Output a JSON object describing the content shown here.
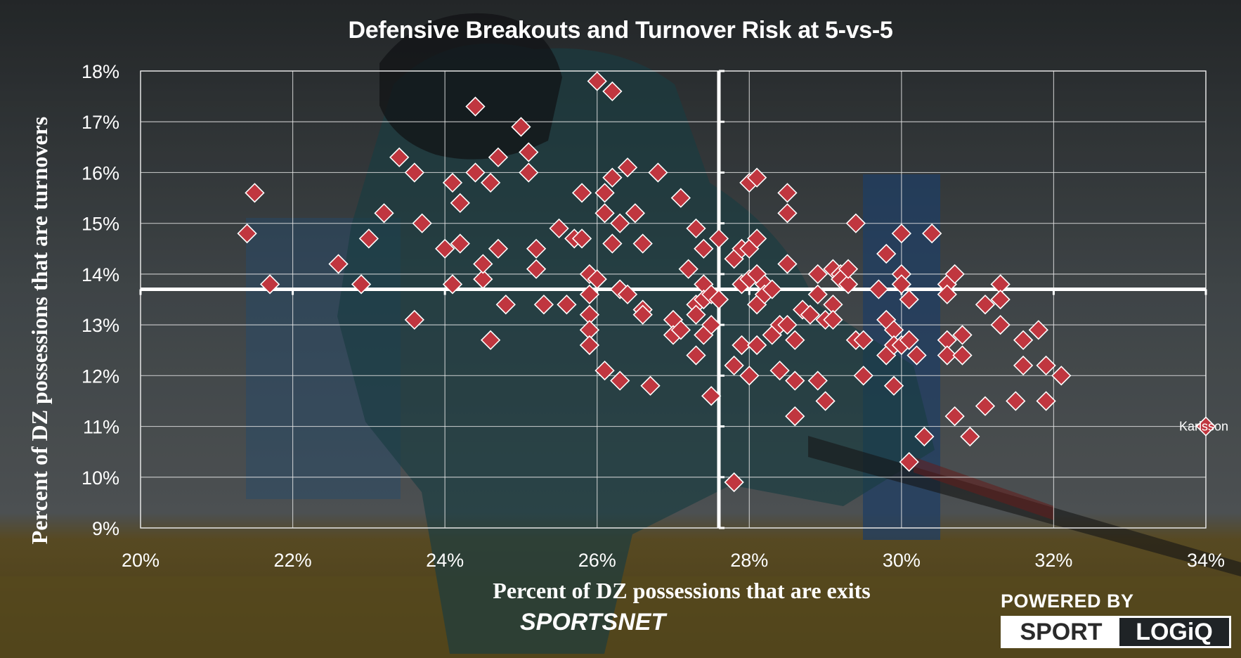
{
  "chart_data": {
    "type": "scatter",
    "title": "Defensive Breakouts and Turnover Risk at 5-vs-5",
    "xlabel": "Percent of DZ possessions that are exits",
    "ylabel": "Percent of DZ possessions that are turnovers",
    "xlim": [
      20,
      34
    ],
    "ylim": [
      9,
      18
    ],
    "x_ticks": [
      "20%",
      "22%",
      "24%",
      "26%",
      "28%",
      "30%",
      "32%",
      "34%"
    ],
    "y_ticks": [
      "9%",
      "10%",
      "11%",
      "12%",
      "13%",
      "14%",
      "15%",
      "16%",
      "17%",
      "18%"
    ],
    "grid": true,
    "reference_lines": {
      "x": 27.6,
      "y": 13.7
    },
    "marker": {
      "shape": "diamond",
      "color": "#c0363f",
      "edge": "#ffffff"
    },
    "points": [
      [
        21.4,
        14.8
      ],
      [
        21.5,
        15.6
      ],
      [
        21.7,
        13.8
      ],
      [
        22.6,
        14.2
      ],
      [
        22.9,
        13.8
      ],
      [
        23.0,
        14.7
      ],
      [
        23.2,
        15.2
      ],
      [
        23.4,
        16.3
      ],
      [
        23.6,
        16.0
      ],
      [
        23.7,
        15.0
      ],
      [
        23.6,
        13.1
      ],
      [
        24.0,
        14.5
      ],
      [
        24.1,
        15.8
      ],
      [
        24.2,
        15.4
      ],
      [
        24.1,
        13.8
      ],
      [
        24.2,
        14.6
      ],
      [
        24.4,
        16.0
      ],
      [
        24.4,
        17.3
      ],
      [
        24.5,
        13.9
      ],
      [
        24.5,
        14.2
      ],
      [
        24.6,
        15.8
      ],
      [
        24.6,
        12.7
      ],
      [
        24.7,
        16.3
      ],
      [
        24.7,
        14.5
      ],
      [
        24.8,
        13.4
      ],
      [
        25.0,
        16.9
      ],
      [
        25.1,
        16.4
      ],
      [
        25.1,
        16.0
      ],
      [
        25.2,
        14.5
      ],
      [
        25.2,
        14.1
      ],
      [
        25.3,
        13.4
      ],
      [
        25.5,
        14.9
      ],
      [
        25.6,
        13.4
      ],
      [
        25.7,
        14.7
      ],
      [
        25.8,
        15.6
      ],
      [
        25.8,
        14.7
      ],
      [
        25.9,
        14.0
      ],
      [
        25.9,
        13.6
      ],
      [
        25.9,
        13.2
      ],
      [
        25.9,
        12.9
      ],
      [
        25.9,
        12.6
      ],
      [
        26.0,
        13.9
      ],
      [
        26.0,
        17.8
      ],
      [
        26.1,
        15.6
      ],
      [
        26.1,
        15.2
      ],
      [
        26.1,
        12.1
      ],
      [
        26.2,
        17.6
      ],
      [
        26.2,
        15.9
      ],
      [
        26.2,
        14.6
      ],
      [
        26.3,
        15.0
      ],
      [
        26.3,
        13.7
      ],
      [
        26.3,
        11.9
      ],
      [
        26.4,
        16.1
      ],
      [
        26.4,
        13.6
      ],
      [
        26.5,
        15.2
      ],
      [
        26.6,
        13.3
      ],
      [
        26.6,
        13.2
      ],
      [
        26.6,
        14.6
      ],
      [
        26.7,
        11.8
      ],
      [
        26.8,
        16.0
      ],
      [
        27.0,
        13.1
      ],
      [
        27.0,
        12.8
      ],
      [
        27.1,
        15.5
      ],
      [
        27.1,
        12.9
      ],
      [
        27.2,
        14.1
      ],
      [
        27.3,
        14.9
      ],
      [
        27.3,
        13.4
      ],
      [
        27.3,
        13.2
      ],
      [
        27.3,
        12.4
      ],
      [
        27.4,
        14.5
      ],
      [
        27.4,
        13.8
      ],
      [
        27.4,
        13.5
      ],
      [
        27.4,
        12.8
      ],
      [
        27.5,
        13.6
      ],
      [
        27.5,
        13.0
      ],
      [
        27.5,
        11.6
      ],
      [
        27.6,
        14.7
      ],
      [
        27.6,
        13.5
      ],
      [
        27.8,
        9.9
      ],
      [
        27.8,
        14.3
      ],
      [
        27.8,
        12.2
      ],
      [
        27.9,
        14.5
      ],
      [
        27.9,
        13.8
      ],
      [
        27.9,
        12.6
      ],
      [
        28.0,
        15.8
      ],
      [
        28.0,
        14.5
      ],
      [
        28.0,
        13.9
      ],
      [
        28.0,
        12.0
      ],
      [
        28.1,
        15.9
      ],
      [
        28.1,
        14.7
      ],
      [
        28.1,
        14.0
      ],
      [
        28.1,
        13.4
      ],
      [
        28.1,
        12.6
      ],
      [
        28.2,
        13.8
      ],
      [
        28.2,
        13.6
      ],
      [
        28.3,
        13.7
      ],
      [
        28.3,
        12.8
      ],
      [
        28.4,
        13.0
      ],
      [
        28.4,
        12.1
      ],
      [
        28.5,
        15.6
      ],
      [
        28.5,
        15.2
      ],
      [
        28.5,
        14.2
      ],
      [
        28.5,
        13.0
      ],
      [
        28.6,
        11.9
      ],
      [
        28.6,
        12.7
      ],
      [
        28.6,
        11.2
      ],
      [
        28.7,
        13.3
      ],
      [
        28.8,
        13.2
      ],
      [
        28.9,
        14.0
      ],
      [
        28.9,
        13.6
      ],
      [
        28.9,
        11.9
      ],
      [
        29.0,
        13.1
      ],
      [
        29.0,
        11.5
      ],
      [
        29.1,
        14.1
      ],
      [
        29.1,
        13.4
      ],
      [
        29.1,
        13.1
      ],
      [
        29.2,
        14.0
      ],
      [
        29.2,
        13.9
      ],
      [
        29.3,
        13.8
      ],
      [
        29.3,
        14.1
      ],
      [
        29.4,
        15.0
      ],
      [
        29.4,
        12.7
      ],
      [
        29.5,
        12.7
      ],
      [
        29.5,
        12.0
      ],
      [
        29.7,
        13.7
      ],
      [
        29.8,
        14.4
      ],
      [
        29.8,
        13.1
      ],
      [
        29.8,
        12.4
      ],
      [
        29.9,
        11.8
      ],
      [
        29.9,
        12.9
      ],
      [
        29.9,
        12.6
      ],
      [
        30.0,
        14.8
      ],
      [
        30.0,
        14.0
      ],
      [
        30.0,
        13.8
      ],
      [
        30.0,
        12.6
      ],
      [
        30.1,
        13.5
      ],
      [
        30.1,
        12.7
      ],
      [
        30.2,
        12.4
      ],
      [
        30.1,
        10.3
      ],
      [
        30.3,
        10.8
      ],
      [
        30.4,
        14.8
      ],
      [
        30.6,
        13.8
      ],
      [
        30.6,
        13.6
      ],
      [
        30.6,
        12.7
      ],
      [
        30.6,
        12.4
      ],
      [
        30.7,
        14.0
      ],
      [
        30.7,
        11.2
      ],
      [
        30.8,
        12.8
      ],
      [
        30.8,
        12.4
      ],
      [
        30.9,
        10.8
      ],
      [
        31.1,
        13.4
      ],
      [
        31.1,
        11.4
      ],
      [
        31.3,
        13.8
      ],
      [
        31.3,
        13.5
      ],
      [
        31.3,
        13.0
      ],
      [
        31.5,
        11.5
      ],
      [
        31.6,
        12.7
      ],
      [
        31.6,
        12.2
      ],
      [
        31.8,
        12.9
      ],
      [
        31.9,
        12.2
      ],
      [
        31.9,
        11.5
      ],
      [
        32.1,
        12.0
      ],
      [
        34.0,
        11.0
      ]
    ],
    "annotations": [
      {
        "text": "Karlsson",
        "x": 34.0,
        "y": 11.0
      }
    ]
  },
  "branding": {
    "sportsnet_a": "SPORTS",
    "sportsnet_b": "NET",
    "powered_by": "POWERED BY",
    "sport": "SPORT",
    "logiq": "LOGiQ"
  }
}
